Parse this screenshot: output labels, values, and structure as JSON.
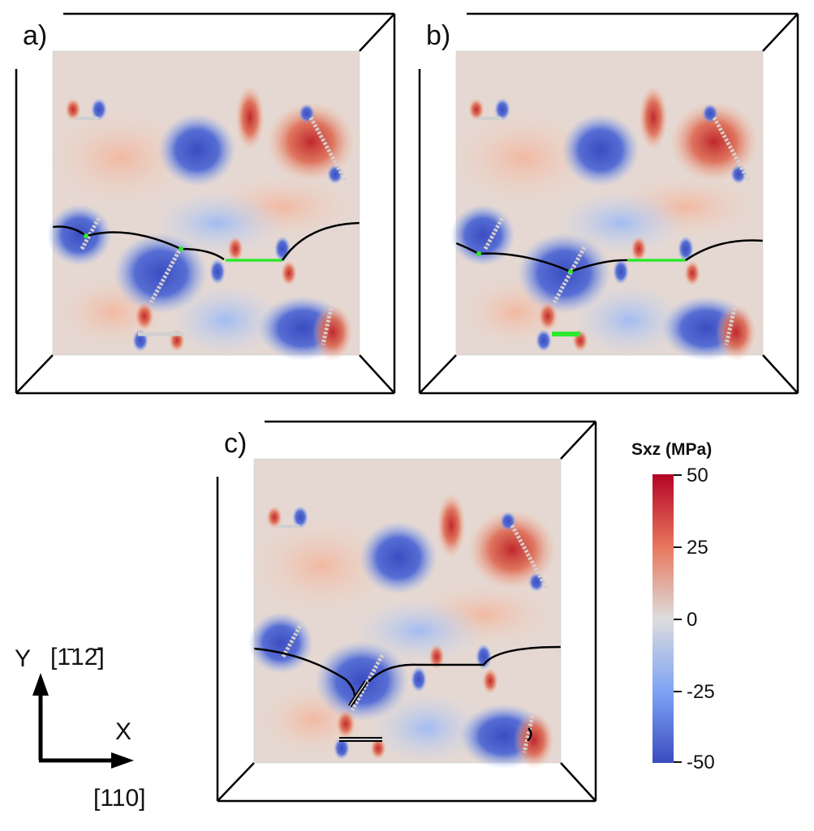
{
  "panels": [
    {
      "label": "a)"
    },
    {
      "label": "b)"
    },
    {
      "label": "c)"
    }
  ],
  "colorbar": {
    "title": "Sxz (MPa)",
    "ticks": [
      "50",
      "25",
      "0",
      "-25",
      "-50"
    ],
    "colors": {
      "max": "#b40426",
      "mid": "#dddddd",
      "min": "#3b4cc0"
    }
  },
  "axes": {
    "y_label": "Y",
    "y_direction": "[1̄12̄]",
    "x_label": "X",
    "x_direction": "[110]"
  }
}
